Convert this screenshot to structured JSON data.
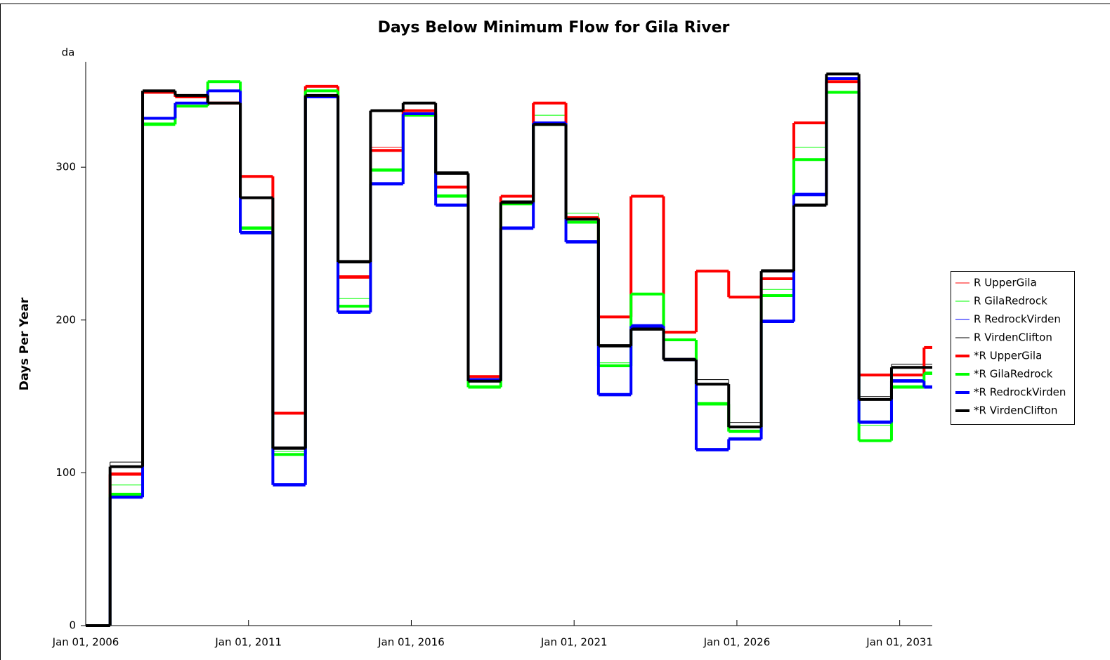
{
  "chart_data": {
    "type": "step",
    "title": "Days Below Minimum Flow for Gila River",
    "y_unit": "da",
    "ylabel": "Days Per Year",
    "x": [
      "2006-01-01",
      "2006-10-01",
      "2007-10-01",
      "2008-10-01",
      "2009-10-01",
      "2010-10-01",
      "2011-10-01",
      "2012-10-01",
      "2013-10-01",
      "2014-10-01",
      "2015-10-01",
      "2016-10-01",
      "2017-10-01",
      "2018-10-01",
      "2019-10-01",
      "2020-10-01",
      "2021-10-01",
      "2022-10-01",
      "2023-10-01",
      "2024-10-01",
      "2025-10-01",
      "2026-10-01",
      "2027-10-01",
      "2028-10-01",
      "2029-10-01",
      "2030-10-01",
      "2031-10-01"
    ],
    "xlim": [
      "2006-01-01",
      "2032-01-01"
    ],
    "xticks": [
      {
        "value": "2006-01-01",
        "label": "Jan 01, 2006"
      },
      {
        "value": "2011-01-01",
        "label": "Jan 01, 2011"
      },
      {
        "value": "2016-01-01",
        "label": "Jan 01, 2016"
      },
      {
        "value": "2021-01-01",
        "label": "Jan 01, 2021"
      },
      {
        "value": "2026-01-01",
        "label": "Jan 01, 2026"
      },
      {
        "value": "2031-01-01",
        "label": "Jan 01, 2031"
      }
    ],
    "ylim": [
      0,
      369
    ],
    "yticks": [
      0,
      100,
      200,
      300
    ],
    "legend": "right",
    "series": [
      {
        "name": "R UpperGila",
        "color": "#ff0000",
        "line_width": 1,
        "values": [
          0,
          100,
          349,
          346,
          342,
          294,
          139,
          353,
          229,
          313,
          337,
          287,
          163,
          281,
          342,
          267,
          202,
          281,
          192,
          232,
          215,
          227,
          329,
          356,
          164,
          164,
          182
        ]
      },
      {
        "name": "R GilaRedrock",
        "color": "#00ff00",
        "line_width": 1,
        "values": [
          0,
          92,
          329,
          340,
          356,
          261,
          114,
          350,
          214,
          299,
          334,
          282,
          157,
          277,
          334,
          270,
          172,
          217,
          187,
          146,
          128,
          220,
          313,
          349,
          131,
          157,
          166
        ]
      },
      {
        "name": "R RedrockVirden",
        "color": "#0000ff",
        "line_width": 1,
        "values": [
          0,
          85,
          332,
          342,
          350,
          258,
          93,
          346,
          206,
          290,
          335,
          276,
          161,
          261,
          329,
          252,
          152,
          197,
          174,
          116,
          123,
          200,
          283,
          358,
          134,
          161,
          157
        ]
      },
      {
        "name": "R VirdenClifton",
        "color": "#000000",
        "line_width": 1,
        "values": [
          0,
          107,
          350,
          347,
          342,
          280,
          117,
          347,
          239,
          337,
          342,
          297,
          161,
          278,
          329,
          267,
          184,
          195,
          175,
          161,
          133,
          233,
          276,
          361,
          150,
          171,
          171
        ]
      },
      {
        "name": "*R UpperGila",
        "color": "#ff0000",
        "line_width": 4,
        "values": [
          0,
          99,
          349,
          346,
          342,
          294,
          139,
          353,
          228,
          311,
          337,
          287,
          163,
          281,
          342,
          267,
          202,
          281,
          192,
          232,
          215,
          227,
          329,
          356,
          164,
          164,
          182
        ]
      },
      {
        "name": "*R GilaRedrock",
        "color": "#00ff00",
        "line_width": 4,
        "values": [
          0,
          86,
          328,
          340,
          356,
          260,
          112,
          350,
          209,
          298,
          334,
          281,
          156,
          276,
          328,
          264,
          170,
          217,
          187,
          145,
          127,
          216,
          305,
          349,
          121,
          156,
          165
        ]
      },
      {
        "name": "*R RedrockVirden",
        "color": "#0000ff",
        "line_width": 4,
        "values": [
          0,
          84,
          332,
          342,
          350,
          257,
          92,
          346,
          205,
          289,
          335,
          275,
          161,
          260,
          329,
          251,
          151,
          196,
          174,
          115,
          122,
          199,
          282,
          358,
          133,
          160,
          156
        ]
      },
      {
        "name": "*R VirdenClifton",
        "color": "#000000",
        "line_width": 4,
        "values": [
          0,
          104,
          350,
          347,
          342,
          280,
          116,
          347,
          238,
          337,
          342,
          296,
          160,
          277,
          328,
          266,
          183,
          194,
          174,
          158,
          130,
          232,
          275,
          361,
          148,
          169,
          169
        ]
      }
    ]
  }
}
